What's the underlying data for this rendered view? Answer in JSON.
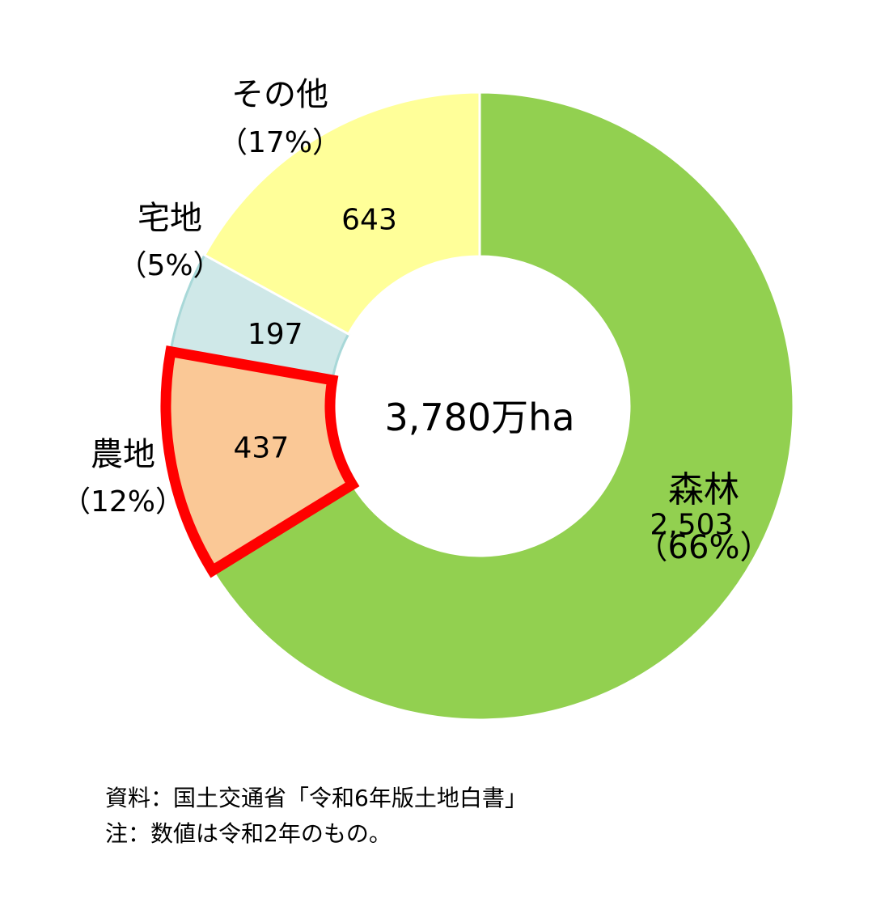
{
  "chart_data": {
    "type": "pie",
    "variant": "donut",
    "center_label": "3,780万ha",
    "categories": [
      "森林",
      "農地",
      "宅地",
      "その他"
    ],
    "values": [
      2503,
      437,
      197,
      643
    ],
    "slices": [
      {
        "name": "森林",
        "value": 2503,
        "value_label": "2,503",
        "percent_label": "（66%）",
        "color": "#92d050",
        "stroke": "#ffffff",
        "highlight": false
      },
      {
        "name": "農地",
        "value": 437,
        "value_label": "437",
        "percent_label": "（12%）",
        "color": "#fac896",
        "stroke": "#ff0000",
        "highlight": true
      },
      {
        "name": "宅地",
        "value": 197,
        "value_label": "197",
        "percent_label": "（5%）",
        "color": "#cfe8e8",
        "stroke": "#a8d8d8",
        "highlight": false
      },
      {
        "name": "その他",
        "value": 643,
        "value_label": "643",
        "percent_label": "（17%）",
        "color": "#ffff99",
        "stroke": "#ffffff",
        "highlight": false
      }
    ],
    "start_angle_deg": 0,
    "direction": "clockwise",
    "legend": "none"
  },
  "footnotes": {
    "source": "資料：国土交通省「令和6年版土地白書」",
    "note": "注：数値は令和2年のもの。"
  }
}
